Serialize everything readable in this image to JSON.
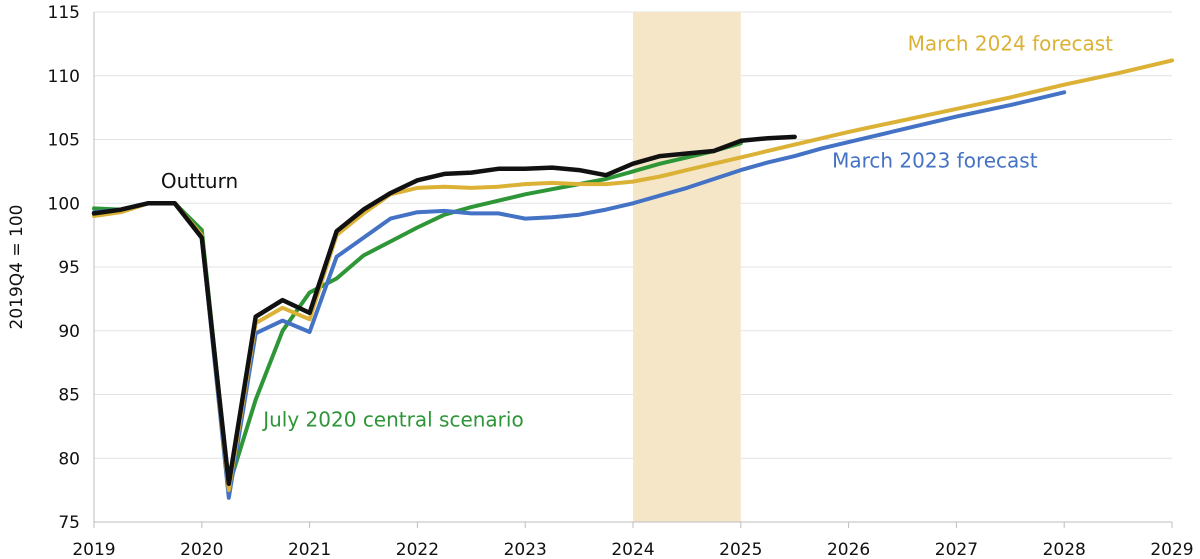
{
  "chart_data": {
    "type": "line",
    "ylabel": "2019Q4 = 100",
    "ylim": [
      75,
      115
    ],
    "yticks": [
      75,
      80,
      85,
      90,
      95,
      100,
      105,
      110,
      115
    ],
    "xlim": [
      2019.0,
      2029.0
    ],
    "xticks": [
      2019,
      2020,
      2021,
      2022,
      2023,
      2024,
      2025,
      2026,
      2027,
      2028,
      2029
    ],
    "xtick_labels": [
      "2019",
      "2020",
      "2021",
      "2022",
      "2023",
      "2024",
      "2025",
      "2026",
      "2027",
      "2028",
      "2029"
    ],
    "grid": true,
    "shaded_region": {
      "from": 2024.0,
      "to": 2025.0,
      "color": "#f5e6c8"
    },
    "series": [
      {
        "name": "July 2020 central scenario",
        "color": "#2e9637",
        "points": [
          [
            2019.0,
            99.6
          ],
          [
            2019.25,
            99.5
          ],
          [
            2019.5,
            100.0
          ],
          [
            2019.75,
            100.0
          ],
          [
            2020.0,
            97.9
          ],
          [
            2020.25,
            77.8
          ],
          [
            2020.5,
            84.6
          ],
          [
            2020.75,
            90.0
          ],
          [
            2021.0,
            93.0
          ],
          [
            2021.25,
            94.1
          ],
          [
            2021.5,
            95.9
          ],
          [
            2021.75,
            97.0
          ],
          [
            2022.0,
            98.1
          ],
          [
            2022.25,
            99.1
          ],
          [
            2022.5,
            99.7
          ],
          [
            2022.75,
            100.2
          ],
          [
            2023.0,
            100.7
          ],
          [
            2023.25,
            101.1
          ],
          [
            2023.5,
            101.5
          ],
          [
            2023.75,
            101.9
          ],
          [
            2024.0,
            102.5
          ],
          [
            2024.25,
            103.1
          ],
          [
            2024.5,
            103.6
          ],
          [
            2024.75,
            104.1
          ],
          [
            2025.0,
            104.7
          ]
        ]
      },
      {
        "name": "March 2023 forecast",
        "color": "#4472c4",
        "points": [
          [
            2019.0,
            99.3
          ],
          [
            2019.25,
            99.5
          ],
          [
            2019.5,
            100.0
          ],
          [
            2019.75,
            100.0
          ],
          [
            2020.0,
            97.3
          ],
          [
            2020.25,
            76.9
          ],
          [
            2020.5,
            89.8
          ],
          [
            2020.75,
            90.8
          ],
          [
            2021.0,
            89.9
          ],
          [
            2021.25,
            95.8
          ],
          [
            2021.5,
            97.3
          ],
          [
            2021.75,
            98.8
          ],
          [
            2022.0,
            99.3
          ],
          [
            2022.25,
            99.4
          ],
          [
            2022.5,
            99.2
          ],
          [
            2022.75,
            99.2
          ],
          [
            2023.0,
            98.8
          ],
          [
            2023.25,
            98.9
          ],
          [
            2023.5,
            99.1
          ],
          [
            2023.75,
            99.5
          ],
          [
            2024.0,
            100.0
          ],
          [
            2024.25,
            100.6
          ],
          [
            2024.5,
            101.2
          ],
          [
            2024.75,
            101.9
          ],
          [
            2025.0,
            102.6
          ],
          [
            2025.25,
            103.2
          ],
          [
            2025.5,
            103.7
          ],
          [
            2025.75,
            104.3
          ],
          [
            2026.0,
            104.8
          ],
          [
            2026.5,
            105.8
          ],
          [
            2027.0,
            106.8
          ],
          [
            2027.5,
            107.7
          ],
          [
            2028.0,
            108.7
          ]
        ]
      },
      {
        "name": "March 2024 forecast",
        "color": "#dbb136",
        "points": [
          [
            2019.0,
            99.0
          ],
          [
            2019.25,
            99.3
          ],
          [
            2019.5,
            100.0
          ],
          [
            2019.75,
            100.0
          ],
          [
            2020.0,
            97.5
          ],
          [
            2020.25,
            77.5
          ],
          [
            2020.5,
            90.6
          ],
          [
            2020.75,
            91.8
          ],
          [
            2021.0,
            90.9
          ],
          [
            2021.25,
            97.5
          ],
          [
            2021.5,
            99.2
          ],
          [
            2021.75,
            100.7
          ],
          [
            2022.0,
            101.2
          ],
          [
            2022.25,
            101.3
          ],
          [
            2022.5,
            101.2
          ],
          [
            2022.75,
            101.3
          ],
          [
            2023.0,
            101.5
          ],
          [
            2023.25,
            101.6
          ],
          [
            2023.5,
            101.5
          ],
          [
            2023.75,
            101.5
          ],
          [
            2024.0,
            101.7
          ],
          [
            2024.25,
            102.1
          ],
          [
            2024.5,
            102.6
          ],
          [
            2024.75,
            103.1
          ],
          [
            2025.0,
            103.6
          ],
          [
            2025.5,
            104.6
          ],
          [
            2026.0,
            105.6
          ],
          [
            2026.5,
            106.5
          ],
          [
            2027.0,
            107.4
          ],
          [
            2027.5,
            108.3
          ],
          [
            2028.0,
            109.3
          ],
          [
            2028.5,
            110.2
          ],
          [
            2029.0,
            111.2
          ]
        ]
      },
      {
        "name": "Outturn",
        "color": "#111111",
        "points": [
          [
            2019.0,
            99.2
          ],
          [
            2019.25,
            99.5
          ],
          [
            2019.5,
            100.0
          ],
          [
            2019.75,
            100.0
          ],
          [
            2020.0,
            97.3
          ],
          [
            2020.25,
            78.0
          ],
          [
            2020.5,
            91.1
          ],
          [
            2020.75,
            92.4
          ],
          [
            2021.0,
            91.4
          ],
          [
            2021.25,
            97.8
          ],
          [
            2021.5,
            99.5
          ],
          [
            2021.75,
            100.8
          ],
          [
            2022.0,
            101.8
          ],
          [
            2022.25,
            102.3
          ],
          [
            2022.5,
            102.4
          ],
          [
            2022.75,
            102.7
          ],
          [
            2023.0,
            102.7
          ],
          [
            2023.25,
            102.8
          ],
          [
            2023.5,
            102.6
          ],
          [
            2023.75,
            102.2
          ],
          [
            2024.0,
            103.1
          ],
          [
            2024.25,
            103.7
          ],
          [
            2024.5,
            103.9
          ],
          [
            2024.75,
            104.1
          ],
          [
            2025.0,
            104.9
          ],
          [
            2025.25,
            105.1
          ],
          [
            2025.5,
            105.2
          ]
        ]
      }
    ],
    "annotations": [
      {
        "text": "Outturn",
        "color": "#111111",
        "x": 2019.62,
        "y": 101.2,
        "anchor": "start"
      },
      {
        "text": "July 2020 central scenario",
        "color": "#2e9637",
        "x": 2020.57,
        "y": 82.5,
        "anchor": "start"
      },
      {
        "text": "March 2023 forecast",
        "color": "#4472c4",
        "x": 2026.8,
        "y": 102.8,
        "anchor": "middle"
      },
      {
        "text": "March 2024 forecast",
        "color": "#dbb136",
        "x": 2027.5,
        "y": 112.0,
        "anchor": "middle"
      }
    ]
  }
}
